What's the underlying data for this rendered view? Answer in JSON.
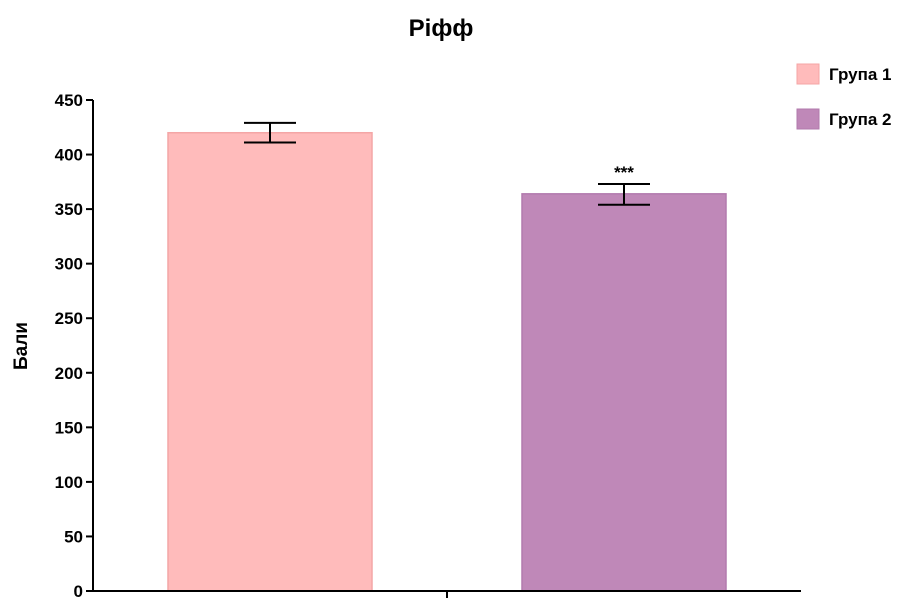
{
  "chart_data": {
    "type": "bar",
    "title": "Ріфф",
    "xlabel": "",
    "ylabel": "Бали",
    "ylim": [
      0,
      450
    ],
    "yticks": [
      0,
      50,
      100,
      150,
      200,
      250,
      300,
      350,
      400,
      450
    ],
    "categories": [
      "Група 1",
      "Група 2"
    ],
    "values": [
      420,
      364
    ],
    "errors": [
      {
        "lower": 411,
        "upper": 429
      },
      {
        "lower": 354,
        "upper": 373
      }
    ],
    "annotations": [
      "",
      "***"
    ],
    "colors": [
      "#FFBBBB",
      "#BF88B8"
    ],
    "edge_colors": [
      "#F4A6A6",
      "#B27AAD"
    ],
    "legend": {
      "placement": "top-right",
      "entries": [
        "Група 1",
        "Група 2"
      ]
    },
    "grid": false
  }
}
